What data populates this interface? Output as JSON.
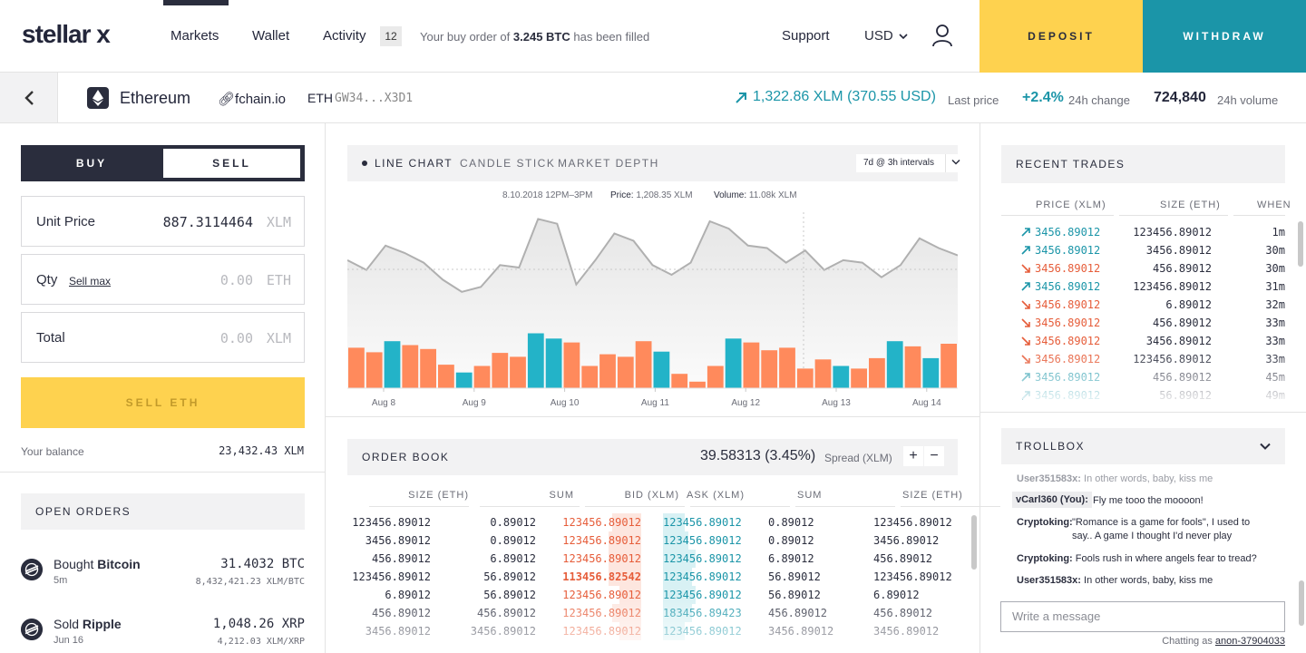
{
  "nav": {
    "logo": "stellar x",
    "items": [
      "Markets",
      "Wallet",
      "Activity"
    ],
    "activity_count": "12",
    "notification_prefix": "Your buy order of",
    "notification_amount": "3.245 BTC",
    "notification_suffix": "has been filled",
    "support": "Support",
    "currency": "USD",
    "deposit": "DEPOSIT",
    "withdraw": "WITHDRAW"
  },
  "asset": {
    "name": "Ethereum",
    "domain": "fchain.io",
    "code": "ETH",
    "issuer": "GW34...X3D1",
    "last_price": "1,322.86 XLM",
    "last_price_usd": "(370.55 USD)",
    "last_price_label": "Last price",
    "change": "+2.4%",
    "change_label": "24h change",
    "volume": "724,840",
    "volume_label": "24h volume"
  },
  "trade_form": {
    "buy_tab": "BUY",
    "sell_tab": "SELL",
    "unit_price_label": "Unit Price",
    "unit_price_value": "887.3114464",
    "unit_price_unit": "XLM",
    "qty_label": "Qty",
    "sell_max": "Sell max",
    "qty_placeholder": "0.00",
    "qty_unit": "ETH",
    "total_label": "Total",
    "total_placeholder": "0.00",
    "total_unit": "XLM",
    "submit": "SELL ETH",
    "balance_label": "Your balance",
    "balance_value": "23,432.43 XLM"
  },
  "open_orders": {
    "title": "OPEN ORDERS",
    "items": [
      {
        "verb": "Bought",
        "asset": "Bitcoin",
        "date": "5m",
        "amount": "31.4032 BTC",
        "rate": "8,432,421.23 XLM/BTC"
      },
      {
        "verb": "Sold",
        "asset": "Ripple",
        "date": "Jun 16",
        "amount": "1,048.26 XRP",
        "rate": "4,212.03 XLM/XRP"
      }
    ]
  },
  "chart": {
    "tabs": [
      "LINE CHART",
      "CANDLE STICK",
      "MARKET DEPTH"
    ],
    "interval": "7d @ 3h intervals",
    "meta_date": "8.10.2018 12PM–3PM",
    "meta_price_label": "Price:",
    "meta_price": "1,208.35 XLM",
    "meta_volume_label": "Volume:",
    "meta_volume": "11.08k XLM",
    "colors": {
      "up": "#23b3c8",
      "down": "#ff8a5c",
      "line": "#b0b0b0"
    }
  },
  "chart_data": {
    "type": "line",
    "x_tick_labels": [
      "Aug 8",
      "Aug 9",
      "Aug 10",
      "Aug 11",
      "Aug 12",
      "Aug 13",
      "Aug 14"
    ],
    "price_series": [
      62,
      54,
      74,
      68,
      60,
      46,
      36,
      40,
      58,
      56,
      96,
      92,
      42,
      62,
      84,
      78,
      58,
      50,
      60,
      94,
      88,
      74,
      72,
      60,
      70,
      54,
      62,
      60,
      48,
      58,
      80,
      72,
      66
    ],
    "volume_series": [
      {
        "v": 0.62,
        "dir": "down"
      },
      {
        "v": 0.55,
        "dir": "down"
      },
      {
        "v": 0.72,
        "dir": "up"
      },
      {
        "v": 0.66,
        "dir": "down"
      },
      {
        "v": 0.6,
        "dir": "down"
      },
      {
        "v": 0.36,
        "dir": "down"
      },
      {
        "v": 0.24,
        "dir": "up"
      },
      {
        "v": 0.34,
        "dir": "down"
      },
      {
        "v": 0.54,
        "dir": "down"
      },
      {
        "v": 0.48,
        "dir": "down"
      },
      {
        "v": 0.84,
        "dir": "up"
      },
      {
        "v": 0.76,
        "dir": "up"
      },
      {
        "v": 0.7,
        "dir": "down"
      },
      {
        "v": 0.34,
        "dir": "down"
      },
      {
        "v": 0.52,
        "dir": "down"
      },
      {
        "v": 0.48,
        "dir": "down"
      },
      {
        "v": 0.72,
        "dir": "down"
      },
      {
        "v": 0.56,
        "dir": "up"
      },
      {
        "v": 0.22,
        "dir": "down"
      },
      {
        "v": 0.1,
        "dir": "down"
      },
      {
        "v": 0.34,
        "dir": "down"
      },
      {
        "v": 0.76,
        "dir": "up"
      },
      {
        "v": 0.7,
        "dir": "down"
      },
      {
        "v": 0.58,
        "dir": "down"
      },
      {
        "v": 0.62,
        "dir": "down"
      },
      {
        "v": 0.3,
        "dir": "down"
      },
      {
        "v": 0.44,
        "dir": "down"
      },
      {
        "v": 0.34,
        "dir": "up"
      },
      {
        "v": 0.3,
        "dir": "down"
      },
      {
        "v": 0.46,
        "dir": "down"
      },
      {
        "v": 0.72,
        "dir": "up"
      },
      {
        "v": 0.64,
        "dir": "down"
      },
      {
        "v": 0.46,
        "dir": "up"
      },
      {
        "v": 0.68,
        "dir": "down"
      }
    ]
  },
  "order_book": {
    "title": "ORDER BOOK",
    "spread": "39.58313",
    "spread_pct": "(3.45%)",
    "spread_label": "Spread (XLM)",
    "plus": "+",
    "minus": "−",
    "columns": [
      "SIZE (ETH)",
      "SUM",
      "BID (XLM)",
      "ASK (XLM)",
      "SUM",
      "SIZE (ETH)"
    ],
    "rows": [
      {
        "bsize": "123456.89012",
        "bsum": "0.89012",
        "bid": "123456.89012",
        "ask": "123456.89012",
        "asum": "0.89012",
        "asize": "123456.89012",
        "bw": 0.4,
        "aw": 0.3,
        "bold": false
      },
      {
        "bsize": "3456.89012",
        "bsum": "0.89012",
        "bid": "123456.89012",
        "ask": "123456.89012",
        "asum": "0.89012",
        "asize": "3456.89012",
        "bw": 0.45,
        "aw": 0.35,
        "bold": false
      },
      {
        "bsize": "456.89012",
        "bsum": "6.89012",
        "bid": "123456.89012",
        "ask": "123456.89012",
        "asum": "6.89012",
        "asize": "456.89012",
        "bw": 0.45,
        "aw": 0.45,
        "bold": false
      },
      {
        "bsize": "123456.89012",
        "bsum": "56.89012",
        "bid": "113456.82542",
        "ask": "123456.89012",
        "asum": "56.89012",
        "asize": "123456.89012",
        "bw": 0.45,
        "aw": 0.4,
        "bold": true
      },
      {
        "bsize": "6.89012",
        "bsum": "56.89012",
        "bid": "123456.89012",
        "ask": "123456.89012",
        "asum": "56.89012",
        "asize": "6.89012",
        "bw": 0.3,
        "aw": 0.45,
        "bold": false
      },
      {
        "bsize": "456.89012",
        "bsum": "456.89012",
        "bid": "123456.89012",
        "ask": "183456.89423",
        "asum": "456.89012",
        "asize": "456.89012",
        "bw": 0.4,
        "aw": 0.4,
        "bold": false
      },
      {
        "bsize": "3456.89012",
        "bsum": "3456.89012",
        "bid": "123456.89012",
        "ask": "123456.89012",
        "asum": "3456.89012",
        "asize": "3456.89012",
        "bw": 0.3,
        "aw": 0.3,
        "bold": false
      }
    ]
  },
  "recent_trades": {
    "title": "RECENT TRADES",
    "columns": [
      "PRICE (XLM)",
      "SIZE (ETH)",
      "WHEN"
    ],
    "rows": [
      {
        "dir": "up",
        "price": "3456.89012",
        "size": "123456.89012",
        "when": "1m"
      },
      {
        "dir": "up",
        "price": "3456.89012",
        "size": "3456.89012",
        "when": "30m"
      },
      {
        "dir": "down",
        "price": "3456.89012",
        "size": "456.89012",
        "when": "30m"
      },
      {
        "dir": "up",
        "price": "3456.89012",
        "size": "123456.89012",
        "when": "31m"
      },
      {
        "dir": "down",
        "price": "3456.89012",
        "size": "6.89012",
        "when": "32m"
      },
      {
        "dir": "down",
        "price": "3456.89012",
        "size": "456.89012",
        "when": "33m"
      },
      {
        "dir": "down",
        "price": "3456.89012",
        "size": "3456.89012",
        "when": "33m"
      },
      {
        "dir": "down",
        "price": "3456.89012",
        "size": "123456.89012",
        "when": "33m"
      },
      {
        "dir": "up",
        "price": "3456.89012",
        "size": "456.89012",
        "when": "45m"
      },
      {
        "dir": "up",
        "price": "3456.89012",
        "size": "56.89012",
        "when": "49m"
      }
    ]
  },
  "trollbox": {
    "title": "TROLLBOX",
    "messages": [
      {
        "user": "User351583x:",
        "text": "In other words, baby, kiss me"
      },
      {
        "user": "vCarl360 (You):",
        "text": "Fly me tooo the moooon!"
      },
      {
        "user": "Cryptoking:",
        "text": "\"Romance is a game for fools\", I used to say.. A game I thought I'd never play"
      },
      {
        "user": "Cryptoking:",
        "text": "Fools rush in where angels fear to tread?"
      },
      {
        "user": "User351583x:",
        "text": "In other words, baby, kiss me"
      }
    ],
    "input_placeholder": "Write a message",
    "chatting_as_label": "Chatting as",
    "chatting_as_user": "anon-37904033"
  }
}
